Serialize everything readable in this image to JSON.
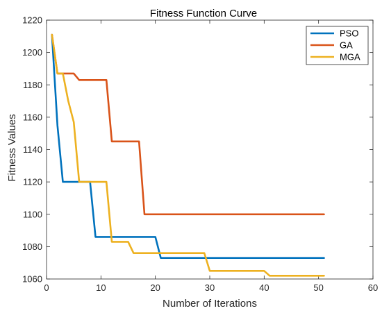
{
  "chart_data": {
    "type": "line",
    "title": "Fitness Function Curve",
    "xlabel": "Number of Iterations",
    "ylabel": "Fitness Values",
    "xlim": [
      0,
      60
    ],
    "ylim": [
      1060,
      1220
    ],
    "xticks": [
      0,
      10,
      20,
      30,
      40,
      50,
      60
    ],
    "yticks": [
      1060,
      1080,
      1100,
      1120,
      1140,
      1160,
      1180,
      1200,
      1220
    ],
    "grid": false,
    "legend": "top-right",
    "series": [
      {
        "name": "PSO",
        "color": "#0072BD",
        "points": [
          [
            1,
            1211
          ],
          [
            2,
            1155
          ],
          [
            3,
            1120
          ],
          [
            8,
            1120
          ],
          [
            9,
            1086
          ],
          [
            20,
            1086
          ],
          [
            21,
            1073
          ],
          [
            51,
            1073
          ]
        ]
      },
      {
        "name": "GA",
        "color": "#D95319",
        "points": [
          [
            1,
            1211
          ],
          [
            2,
            1187
          ],
          [
            5,
            1187
          ],
          [
            6,
            1183
          ],
          [
            11,
            1183
          ],
          [
            12,
            1145
          ],
          [
            17,
            1145
          ],
          [
            18,
            1100
          ],
          [
            51,
            1100
          ]
        ]
      },
      {
        "name": "MGA",
        "color": "#EDB120",
        "points": [
          [
            1,
            1211
          ],
          [
            2,
            1187
          ],
          [
            3,
            1187
          ],
          [
            4,
            1170
          ],
          [
            5,
            1157
          ],
          [
            6,
            1120
          ],
          [
            11,
            1120
          ],
          [
            12,
            1083
          ],
          [
            15,
            1083
          ],
          [
            16,
            1076
          ],
          [
            29,
            1076
          ],
          [
            30,
            1065
          ],
          [
            40,
            1065
          ],
          [
            41,
            1062
          ],
          [
            51,
            1062
          ]
        ]
      }
    ]
  }
}
